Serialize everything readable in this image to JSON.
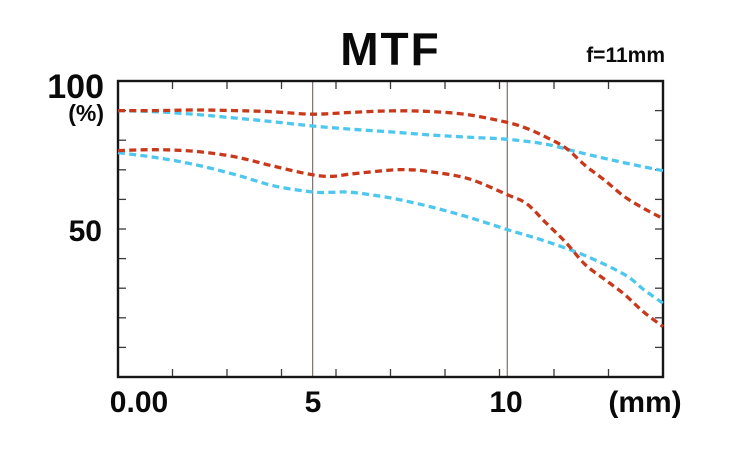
{
  "title": "MTF",
  "header": {
    "focal_length_label": "f=11mm"
  },
  "y_axis": {
    "top_label": "100",
    "unit_label": "(%)",
    "mid_label": "50"
  },
  "x_axis": {
    "labels": [
      {
        "text": "0.00",
        "mm": 0
      },
      {
        "text": "5",
        "mm": 5
      },
      {
        "text": "10",
        "mm": 10
      }
    ],
    "unit_label": "(mm)"
  },
  "chart_data": {
    "type": "line",
    "title": "MTF",
    "annotation": "f=11mm",
    "xlabel": "(mm)",
    "ylabel": "(%)",
    "xlim": [
      0,
      14
    ],
    "ylim": [
      0,
      100
    ],
    "x_labeled_values": [
      0,
      5,
      10
    ],
    "y_labeled_values": [
      100,
      50
    ],
    "x_gridlines_mm": [
      5,
      10
    ],
    "x_tick_divisions": 10,
    "y_tick_divisions": 10,
    "grid": "vertical-lines-at-5-and-10-only",
    "legend": "none",
    "line_style": "dashed",
    "colors": {
      "red": "#c8391b",
      "cyan": "#4ec7ef",
      "axis": "#161616",
      "tick": "#3a3a3a",
      "gridline": "#7d716c"
    },
    "series": [
      {
        "name": "cyan-upper",
        "color": "#4ec7ef",
        "points": [
          [
            0,
            90
          ],
          [
            1,
            89.6
          ],
          [
            2,
            88.7
          ],
          [
            3,
            87.5
          ],
          [
            4,
            86.2
          ],
          [
            5,
            84.8
          ],
          [
            6,
            83.7
          ],
          [
            7,
            82.8
          ],
          [
            8,
            81.8
          ],
          [
            9,
            81
          ],
          [
            10,
            80.3
          ],
          [
            11,
            78.6
          ],
          [
            12,
            75.4
          ],
          [
            13,
            72.4
          ],
          [
            14,
            69.7
          ]
        ]
      },
      {
        "name": "cyan-lower",
        "color": "#4ec7ef",
        "points": [
          [
            0,
            75.8
          ],
          [
            1,
            74.1
          ],
          [
            2,
            71.7
          ],
          [
            3,
            68.4
          ],
          [
            4,
            64.6
          ],
          [
            5,
            62.5
          ],
          [
            5.5,
            62.4
          ],
          [
            6,
            62.4
          ],
          [
            7,
            60.5
          ],
          [
            8,
            57.6
          ],
          [
            9,
            54
          ],
          [
            10,
            49.8
          ],
          [
            11,
            45.8
          ],
          [
            12,
            41
          ],
          [
            13,
            34.7
          ],
          [
            13.5,
            29.6
          ],
          [
            14,
            24.9
          ]
        ]
      },
      {
        "name": "red-upper",
        "color": "#c8391b",
        "points": [
          [
            0,
            90
          ],
          [
            1,
            90
          ],
          [
            2,
            90.2
          ],
          [
            3,
            90
          ],
          [
            4,
            89.6
          ],
          [
            5,
            88.8
          ],
          [
            6,
            89.4
          ],
          [
            7,
            89.9
          ],
          [
            8,
            89.7
          ],
          [
            9,
            88.6
          ],
          [
            10,
            86
          ],
          [
            10.5,
            84
          ],
          [
            11,
            81
          ],
          [
            11.5,
            77.4
          ],
          [
            12,
            71.5
          ],
          [
            12.5,
            66.5
          ],
          [
            13,
            61
          ],
          [
            13.5,
            57
          ],
          [
            14,
            53.5
          ]
        ]
      },
      {
        "name": "red-lower",
        "color": "#c8391b",
        "points": [
          [
            0,
            76.5
          ],
          [
            1,
            76.8
          ],
          [
            2,
            76.2
          ],
          [
            3,
            74.4
          ],
          [
            4,
            71.2
          ],
          [
            5,
            68.3
          ],
          [
            5.5,
            67.8
          ],
          [
            6,
            68.6
          ],
          [
            7,
            69.9
          ],
          [
            7.5,
            70
          ],
          [
            8,
            69.4
          ],
          [
            9,
            67
          ],
          [
            10,
            61.6
          ],
          [
            10.5,
            58.5
          ],
          [
            11,
            52
          ],
          [
            11.5,
            45.5
          ],
          [
            12,
            38
          ],
          [
            12.5,
            33
          ],
          [
            13,
            28
          ],
          [
            13.5,
            22
          ],
          [
            14,
            17
          ]
        ]
      }
    ]
  }
}
